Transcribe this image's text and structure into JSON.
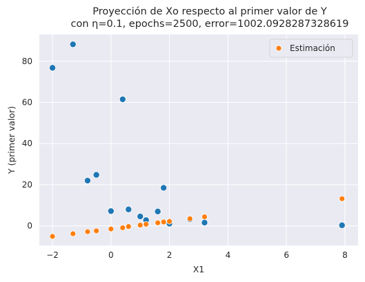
{
  "chart_data": {
    "type": "scatter",
    "title_lines": [
      "Proyección de Xo respecto al primer valor de Y",
      "con η=0.1, epochs=2500, error=1002.0928287328619"
    ],
    "xlabel": "X1",
    "ylabel": "Y (primer valor)",
    "xlim": [
      -2.45,
      8.45
    ],
    "ylim": [
      -9.5,
      93
    ],
    "xticks": [
      -2,
      0,
      2,
      4,
      6,
      8
    ],
    "yticks": [
      0,
      20,
      40,
      60,
      80
    ],
    "grid": true,
    "legend_position": "top-right",
    "background_color": "#eaeaf2",
    "series": [
      {
        "name": "",
        "color": "#1f77b4",
        "points": [
          [
            -2.0,
            76.8
          ],
          [
            -1.3,
            88.2
          ],
          [
            -0.8,
            22.0
          ],
          [
            -0.5,
            24.8
          ],
          [
            0.0,
            7.2
          ],
          [
            0.4,
            61.5
          ],
          [
            0.6,
            8.0
          ],
          [
            1.0,
            4.6
          ],
          [
            1.2,
            2.8
          ],
          [
            1.6,
            7.0
          ],
          [
            1.8,
            18.5
          ],
          [
            2.0,
            1.1
          ],
          [
            2.7,
            3.2
          ],
          [
            3.2,
            1.6
          ],
          [
            7.9,
            0.3
          ]
        ]
      },
      {
        "name": "Estimación",
        "color": "#ff7f0e",
        "points": [
          [
            -2.0,
            -5.1
          ],
          [
            -1.3,
            -3.8
          ],
          [
            -0.8,
            -2.8
          ],
          [
            -0.5,
            -2.4
          ],
          [
            0.0,
            -1.5
          ],
          [
            0.4,
            -0.9
          ],
          [
            0.6,
            -0.3
          ],
          [
            1.0,
            0.4
          ],
          [
            1.2,
            0.8
          ],
          [
            1.6,
            1.5
          ],
          [
            1.8,
            1.9
          ],
          [
            2.0,
            2.2
          ],
          [
            2.7,
            3.5
          ],
          [
            3.2,
            4.4
          ],
          [
            7.9,
            13.2
          ]
        ]
      }
    ]
  }
}
